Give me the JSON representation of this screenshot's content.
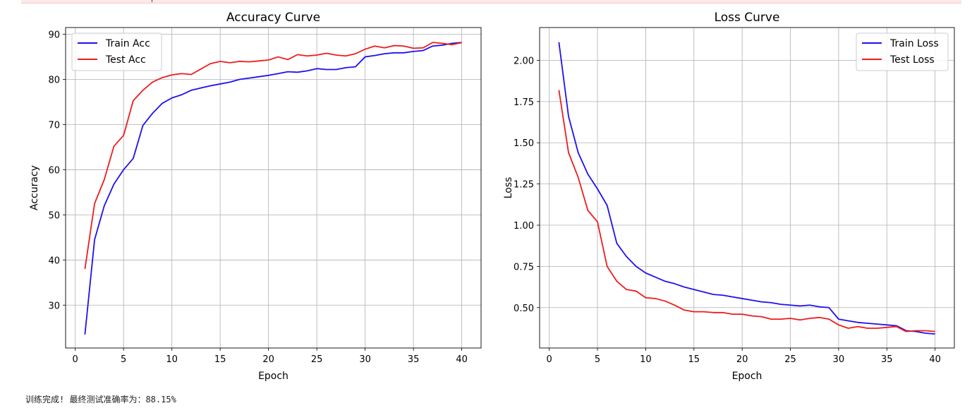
{
  "chart_data": [
    {
      "type": "line",
      "title": "Accuracy Curve",
      "xlabel": "Epoch",
      "ylabel": "Accuracy",
      "xlim": [
        -1,
        42
      ],
      "ylim": [
        20.5,
        91.5
      ],
      "xticks": [
        0,
        5,
        10,
        15,
        20,
        25,
        30,
        35,
        40
      ],
      "yticks": [
        30,
        40,
        50,
        60,
        70,
        80,
        90
      ],
      "tick_format": 0,
      "grid": true,
      "legend_position": "upper left",
      "x": [
        1,
        2,
        3,
        4,
        5,
        6,
        7,
        8,
        9,
        10,
        11,
        12,
        13,
        14,
        15,
        16,
        17,
        18,
        19,
        20,
        21,
        22,
        23,
        24,
        25,
        26,
        27,
        28,
        29,
        30,
        31,
        32,
        33,
        34,
        35,
        36,
        37,
        38,
        39,
        40
      ],
      "series": [
        {
          "name": "Train Acc",
          "color": "#1f10f0",
          "values": [
            23.5,
            44.5,
            52.0,
            56.8,
            60.0,
            62.5,
            69.8,
            72.5,
            74.7,
            75.9,
            76.6,
            77.6,
            78.1,
            78.6,
            79.0,
            79.4,
            80.0,
            80.3,
            80.6,
            80.9,
            81.3,
            81.7,
            81.6,
            81.9,
            82.4,
            82.2,
            82.2,
            82.6,
            82.8,
            85.0,
            85.3,
            85.7,
            85.9,
            85.9,
            86.2,
            86.4,
            87.4,
            87.6,
            88.0,
            88.2
          ]
        },
        {
          "name": "Test Acc",
          "color": "#ee1c1c",
          "values": [
            38.0,
            52.5,
            57.8,
            65.2,
            67.6,
            75.3,
            77.6,
            79.4,
            80.4,
            81.0,
            81.3,
            81.1,
            82.3,
            83.5,
            84.0,
            83.7,
            84.0,
            83.9,
            84.1,
            84.3,
            85.0,
            84.4,
            85.5,
            85.2,
            85.4,
            85.8,
            85.4,
            85.2,
            85.7,
            86.7,
            87.4,
            87.0,
            87.5,
            87.4,
            86.9,
            87.0,
            88.2,
            88.0,
            87.7,
            88.15
          ]
        }
      ]
    },
    {
      "type": "line",
      "title": "Loss Curve",
      "xlabel": "Epoch",
      "ylabel": "Loss",
      "xlim": [
        -1,
        42
      ],
      "ylim": [
        0.255,
        2.199
      ],
      "xticks": [
        0,
        5,
        10,
        15,
        20,
        25,
        30,
        35,
        40
      ],
      "yticks": [
        0.5,
        0.75,
        1.0,
        1.25,
        1.5,
        1.75,
        2.0
      ],
      "tick_format": 2,
      "grid": true,
      "legend_position": "upper right",
      "x": [
        1,
        2,
        3,
        4,
        5,
        6,
        7,
        8,
        9,
        10,
        11,
        12,
        13,
        14,
        15,
        16,
        17,
        18,
        19,
        20,
        21,
        22,
        23,
        24,
        25,
        26,
        27,
        28,
        29,
        30,
        31,
        32,
        33,
        34,
        35,
        36,
        37,
        38,
        39,
        40
      ],
      "series": [
        {
          "name": "Train Loss",
          "color": "#1f10f0",
          "values": [
            2.11,
            1.66,
            1.44,
            1.31,
            1.22,
            1.12,
            0.89,
            0.81,
            0.75,
            0.71,
            0.685,
            0.66,
            0.645,
            0.625,
            0.61,
            0.595,
            0.58,
            0.575,
            0.565,
            0.555,
            0.545,
            0.535,
            0.53,
            0.52,
            0.515,
            0.51,
            0.515,
            0.505,
            0.5,
            0.43,
            0.42,
            0.41,
            0.405,
            0.4,
            0.395,
            0.39,
            0.36,
            0.355,
            0.345,
            0.34
          ]
        },
        {
          "name": "Test Loss",
          "color": "#ee1c1c",
          "values": [
            1.82,
            1.44,
            1.29,
            1.09,
            1.02,
            0.75,
            0.66,
            0.61,
            0.6,
            0.56,
            0.555,
            0.54,
            0.515,
            0.485,
            0.475,
            0.475,
            0.47,
            0.47,
            0.46,
            0.46,
            0.45,
            0.445,
            0.43,
            0.43,
            0.435,
            0.425,
            0.435,
            0.44,
            0.43,
            0.395,
            0.375,
            0.385,
            0.375,
            0.375,
            0.38,
            0.385,
            0.355,
            0.36,
            0.36,
            0.355
          ]
        }
      ]
    }
  ],
  "status_text": "训练完成! 最终测试准确率为：88.15%"
}
